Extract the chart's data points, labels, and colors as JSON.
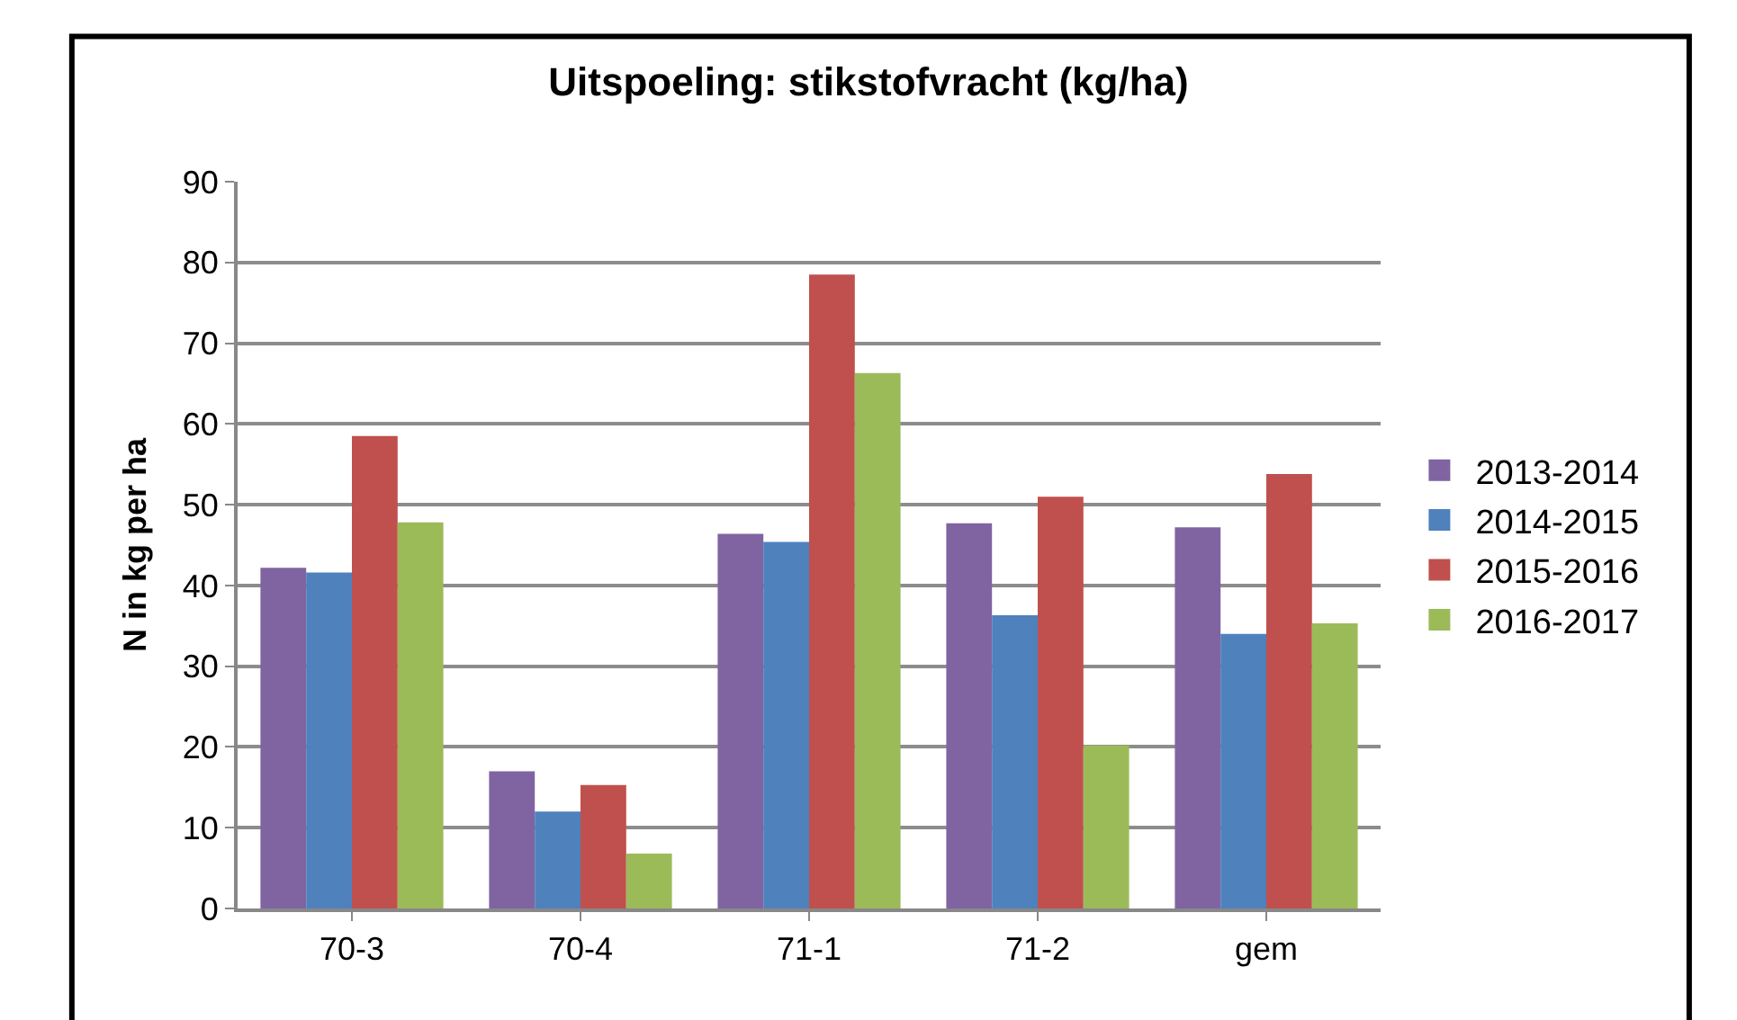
{
  "chart_data": {
    "type": "bar",
    "title": "Uitspoeling: stikstofvracht (kg/ha)",
    "ylabel": "N in kg per ha",
    "categories": [
      "70-3",
      "70-4",
      "71-1",
      "71-2",
      "gem"
    ],
    "series": [
      {
        "name": "2013-2014",
        "color": "#8064a2",
        "values": [
          42.2,
          17,
          46.4,
          47.7,
          47.2
        ]
      },
      {
        "name": "2014-2015",
        "color": "#4f81bd",
        "values": [
          41.6,
          12,
          45.4,
          36.3,
          34
        ]
      },
      {
        "name": "2015-2016",
        "color": "#c0504d",
        "values": [
          58.5,
          15.3,
          78.5,
          51,
          53.8
        ]
      },
      {
        "name": "2016-2017",
        "color": "#9bbb59",
        "values": [
          47.8,
          6.8,
          66.3,
          20.2,
          35.3
        ]
      }
    ],
    "ylim": [
      0,
      90
    ],
    "yticks": [
      0,
      10,
      20,
      30,
      40,
      50,
      60,
      70,
      80,
      90
    ],
    "grid": "y",
    "legend": "right"
  }
}
